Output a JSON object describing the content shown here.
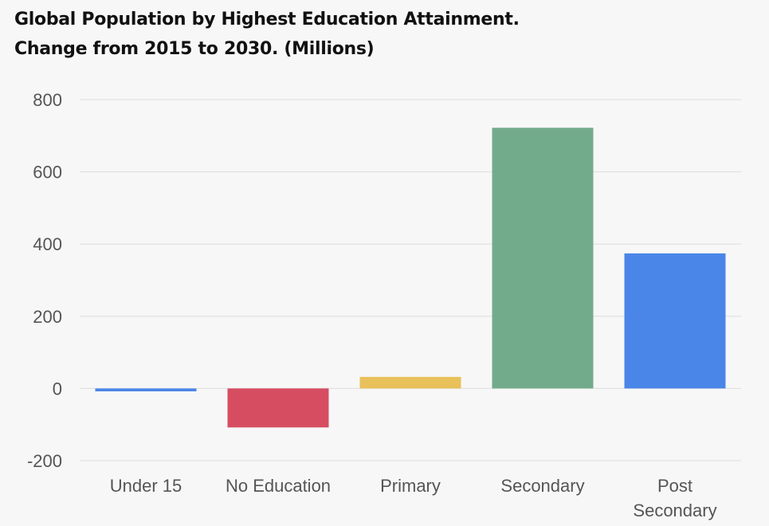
{
  "chart_data": {
    "type": "bar",
    "title_lines": [
      "Global Population by Highest Education Attainment.",
      "Change from 2015 to 2030. (Millions)"
    ],
    "categories": [
      [
        "Under 15"
      ],
      [
        "No Education"
      ],
      [
        "Primary"
      ],
      [
        "Secondary"
      ],
      [
        "Post",
        "Secondary"
      ]
    ],
    "values": [
      -8,
      -108,
      32,
      722,
      374
    ],
    "colors": [
      "#4a86e8",
      "#d64d62",
      "#e8c15a",
      "#72ab8b",
      "#4a86e8"
    ],
    "yticks": [
      800,
      600,
      400,
      200,
      0,
      -200
    ],
    "ylim": [
      -200,
      800
    ],
    "grid": true,
    "legend": "none"
  }
}
